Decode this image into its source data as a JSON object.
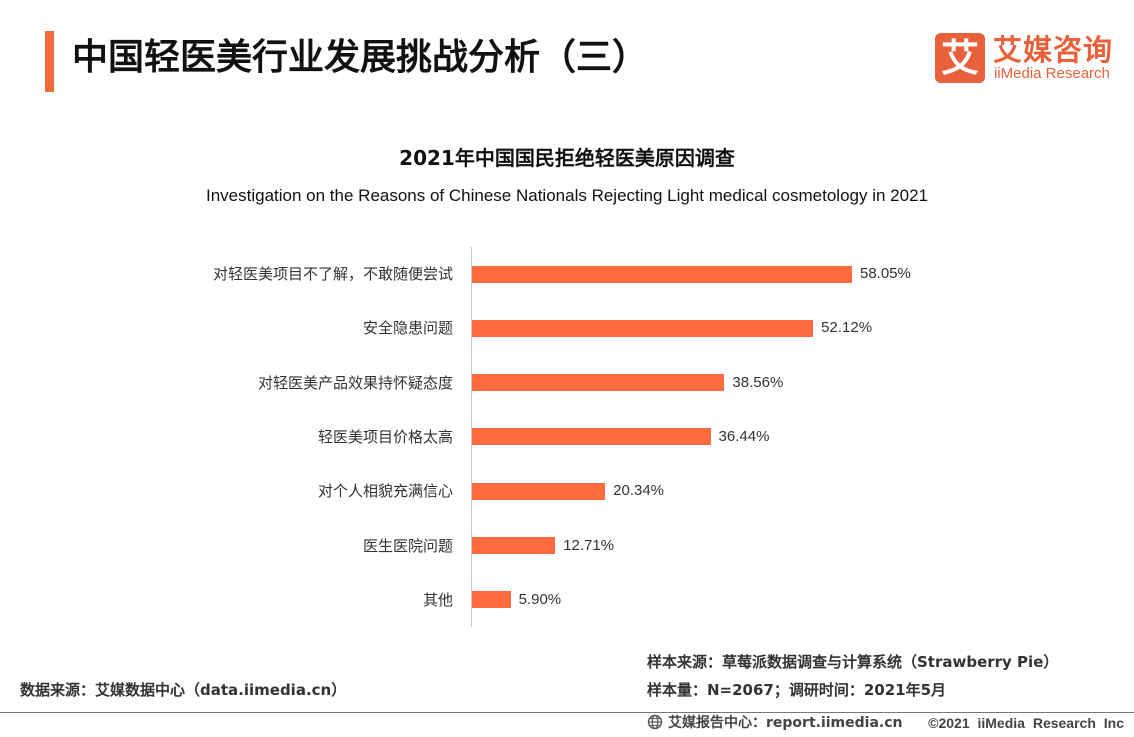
{
  "header": {
    "title": "中国轻医美行业发展挑战分析（三）",
    "accent": "#F26A3A"
  },
  "logo": {
    "mark": "艾",
    "name_cn": "艾媒咨询",
    "name_en": "iiMedia Research",
    "color": "#E8613A"
  },
  "chart_data": {
    "type": "bar",
    "orientation": "horizontal",
    "title": "2021年中国国民拒绝轻医美原因调查",
    "subtitle": "Investigation on the Reasons of Chinese Nationals Rejecting Light medical cosmetology in 2021",
    "categories": [
      "对轻医美项目不了解，不敢随便尝试",
      "安全隐患问题",
      "对轻医美产品效果持怀疑态度",
      "轻医美项目价格太高",
      "对个人相貌充满信心",
      "医生医院问题",
      "其他"
    ],
    "values": [
      58.05,
      52.12,
      38.56,
      36.44,
      20.34,
      12.71,
      5.9
    ],
    "data_labels": [
      "58.05%",
      "52.12%",
      "38.56%",
      "36.44%",
      "20.34%",
      "12.71%",
      "5.90%"
    ],
    "grid": false,
    "legend": "none",
    "color": "#FF6B3D"
  },
  "footer": {
    "sample_source": "样本来源：草莓派数据调查与计算系统（Strawberry Pie）",
    "sample_size": "样本量：N=2067；调研时间：2021年5月",
    "data_source": "数据来源：艾媒数据中心（data.iimedia.cn）",
    "report_center": "艾媒报告中心：report.iimedia.cn",
    "copyright": "©2021 iiMedia Research Inc",
    "icon": "globe-icon"
  }
}
